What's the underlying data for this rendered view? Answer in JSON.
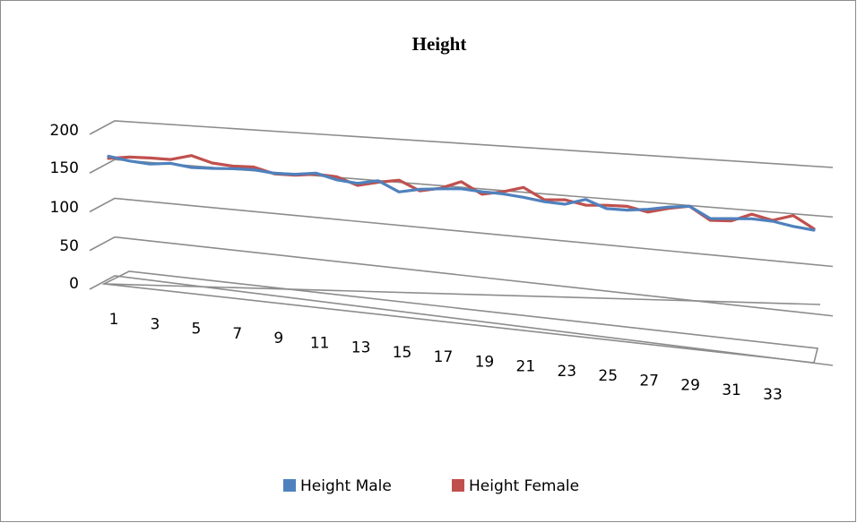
{
  "chart_data": {
    "type": "line",
    "title": "Height",
    "xlabel": "",
    "ylabel": "",
    "ylim": [
      0,
      200
    ],
    "y_ticks": [
      "0",
      "50",
      "100",
      "150",
      "200"
    ],
    "x_tick_labels": [
      "1",
      "3",
      "5",
      "7",
      "9",
      "11",
      "13",
      "15",
      "17",
      "19",
      "21",
      "23",
      "25",
      "27",
      "29",
      "31",
      "33"
    ],
    "categories": [
      "1",
      "2",
      "3",
      "4",
      "5",
      "6",
      "7",
      "8",
      "9",
      "10",
      "11",
      "12",
      "13",
      "14",
      "15",
      "16",
      "17",
      "18",
      "19",
      "20",
      "21",
      "22",
      "23",
      "24",
      "25",
      "26",
      "27",
      "28",
      "29",
      "30",
      "31",
      "32",
      "33",
      "34",
      "35"
    ],
    "grid": true,
    "perspective": "3d",
    "legend_position": "bottom",
    "series": [
      {
        "name": "Height Male",
        "color": "#4f81bd",
        "values": [
          159,
          154,
          152,
          157,
          153,
          155,
          158,
          160,
          157,
          159,
          165,
          156,
          153,
          162,
          144,
          153,
          158,
          162,
          160,
          160,
          157,
          152,
          151,
          165,
          150,
          151,
          157,
          166,
          172,
          150,
          154,
          158,
          157,
          150,
          146
        ]
      },
      {
        "name": "Height Female",
        "color": "#c0504d",
        "values": [
          155,
          161,
          163,
          164,
          175,
          165,
          163,
          165,
          156,
          157,
          163,
          162,
          149,
          159,
          167,
          150,
          159,
          176,
          155,
          164,
          177,
          156,
          160,
          153,
          157,
          159,
          151,
          163,
          172,
          146,
          149,
          168,
          159,
          174,
          149
        ]
      }
    ]
  }
}
